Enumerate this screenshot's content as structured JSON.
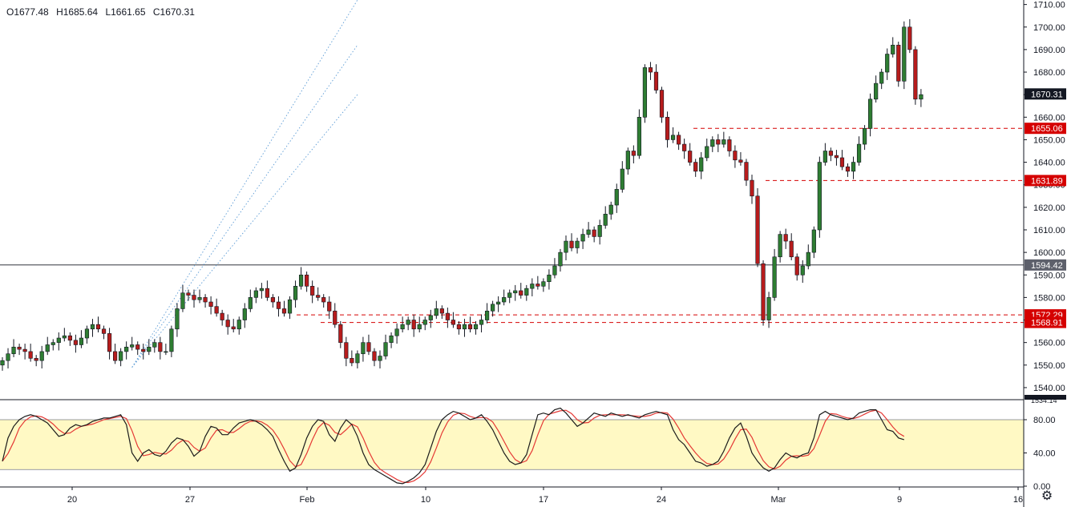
{
  "ohlc_legend": {
    "open": "O1677.48",
    "high": "H1685.64",
    "low": "L1661.65",
    "close": "C1670.31"
  },
  "colors": {
    "up": "#26a69a",
    "down": "#ef5350",
    "candle_body_up": "#2e7d32",
    "candle_body_down": "#b71c1c",
    "level": "#d50000",
    "channel": "#5b9bd5",
    "stoch_k": "#1b1b1b",
    "stoch_d": "#e53935",
    "stoch_band": "#fff9c4",
    "price_tag": "#131722"
  },
  "chart_data": [
    {
      "type": "candlestick",
      "title": "",
      "price_axis": {
        "range": [
          1535,
          1712
        ],
        "ticks": [
          "1710.00",
          "1700.00",
          "1690.00",
          "1680.00",
          "1670.00",
          "1660.00",
          "1650.00",
          "1640.00",
          "1630.00",
          "1620.00",
          "1610.00",
          "1600.00",
          "1590.00",
          "1580.00",
          "1570.00",
          "1560.00",
          "1550.00",
          "1540.00"
        ]
      },
      "time_axis": {
        "labels": [
          "20",
          "27",
          "Feb",
          "10",
          "17",
          "24",
          "Mar",
          "9",
          "16"
        ]
      },
      "last_price": "1670.31",
      "levels": [
        {
          "value": 1655.06,
          "label": "1655.06"
        },
        {
          "value": 1631.89,
          "label": "1631.89"
        },
        {
          "value": 1572.29,
          "label": "1572.29"
        },
        {
          "value": 1568.91,
          "label": "1568.91"
        }
      ],
      "horizontal_line": {
        "value": 1594.42,
        "label": "1594.42"
      },
      "bottom_tag": "1534.14",
      "channel_lines": [
        {
          "from": [
            "2020-02-05",
            1549
          ],
          "to": [
            "2020-03-16",
            1712
          ]
        },
        {
          "from": [
            "2020-02-05",
            1549
          ],
          "to": [
            "2020-03-16",
            1692
          ]
        },
        {
          "from": [
            "2020-02-05",
            1549
          ],
          "to": [
            "2020-03-16",
            1670
          ]
        }
      ],
      "closes": [
        1552,
        1555,
        1558,
        1557,
        1556,
        1553,
        1552,
        1556,
        1559,
        1560,
        1562,
        1563,
        1561,
        1559,
        1562,
        1566,
        1568,
        1566,
        1564,
        1556,
        1552,
        1556,
        1558,
        1559,
        1557,
        1556,
        1558,
        1560,
        1556,
        1556,
        1566,
        1575,
        1582,
        1581,
        1579,
        1580,
        1578,
        1576,
        1573,
        1570,
        1567,
        1566,
        1570,
        1575,
        1580,
        1583,
        1584,
        1580,
        1578,
        1575,
        1573,
        1579,
        1585,
        1590,
        1585,
        1581,
        1580,
        1578,
        1574,
        1568,
        1560,
        1553,
        1551,
        1555,
        1560,
        1556,
        1552,
        1554,
        1560,
        1563,
        1566,
        1568,
        1570,
        1566,
        1568,
        1570,
        1572,
        1575,
        1573,
        1570,
        1568,
        1566,
        1568,
        1566,
        1568,
        1570,
        1574,
        1577,
        1578,
        1580,
        1582,
        1583,
        1581,
        1584,
        1586,
        1585,
        1587,
        1590,
        1594,
        1600,
        1605,
        1602,
        1605,
        1608,
        1610,
        1607,
        1612,
        1617,
        1621,
        1628,
        1637,
        1645,
        1643,
        1660,
        1682,
        1680,
        1672,
        1660,
        1650,
        1652,
        1648,
        1645,
        1640,
        1636,
        1642,
        1647,
        1650,
        1648,
        1650,
        1645,
        1641,
        1640,
        1632,
        1625,
        1595,
        1570,
        1580,
        1598,
        1608,
        1605,
        1598,
        1590,
        1594,
        1600,
        1610,
        1640,
        1645,
        1643,
        1642,
        1638,
        1636,
        1640,
        1648,
        1655,
        1668,
        1675,
        1680,
        1688,
        1692,
        1676,
        1700,
        1690,
        1668,
        1670
      ],
      "stochastic": {
        "range": [
          0,
          100
        ],
        "ticks": [
          "80.00",
          "40.00",
          "0.00"
        ],
        "upper_band": 80,
        "lower_band": 20,
        "k": [
          30,
          58,
          72,
          80,
          84,
          86,
          84,
          80,
          76,
          68,
          60,
          62,
          70,
          74,
          72,
          74,
          78,
          80,
          82,
          82,
          84,
          86,
          74,
          40,
          30,
          40,
          44,
          38,
          36,
          42,
          52,
          58,
          56,
          48,
          36,
          42,
          60,
          72,
          70,
          62,
          62,
          70,
          76,
          78,
          80,
          78,
          74,
          68,
          60,
          44,
          30,
          18,
          22,
          38,
          58,
          72,
          80,
          78,
          62,
          54,
          70,
          80,
          74,
          60,
          40,
          26,
          20,
          16,
          12,
          8,
          4,
          3,
          6,
          10,
          16,
          26,
          46,
          66,
          80,
          86,
          90,
          88,
          84,
          80,
          82,
          86,
          78,
          68,
          54,
          40,
          30,
          26,
          28,
          38,
          62,
          86,
          88,
          86,
          92,
          94,
          88,
          80,
          72,
          76,
          82,
          88,
          86,
          84,
          88,
          86,
          84,
          86,
          84,
          82,
          86,
          88,
          90,
          88,
          86,
          68,
          56,
          50,
          40,
          30,
          28,
          24,
          26,
          30,
          42,
          58,
          70,
          76,
          60,
          40,
          30,
          22,
          18,
          22,
          32,
          40,
          36,
          34,
          38,
          40,
          58,
          86,
          90,
          86,
          84,
          82,
          80,
          82,
          88,
          90,
          92,
          92,
          80,
          68,
          66,
          58,
          56
        ]
      }
    }
  ]
}
